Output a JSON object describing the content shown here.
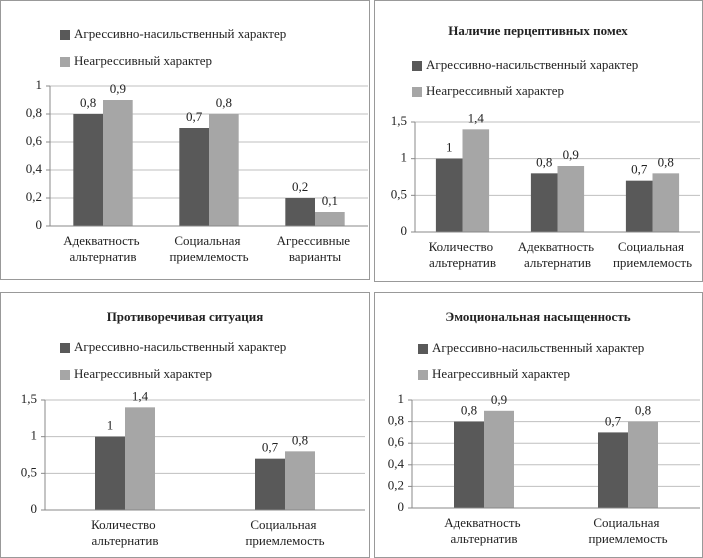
{
  "chart_data": [
    {
      "type": "bar",
      "categories": [
        "Адекватность альтернатив",
        "Социальная приемлемость",
        "Агрессивные варианты"
      ],
      "series": [
        {
          "name": "Агрессивно-насильственный характер",
          "color": "#595959",
          "values": [
            0.8,
            0.7,
            0.2
          ],
          "value_labels": [
            "0,8",
            "0,7",
            "0,2"
          ]
        },
        {
          "name": "Неагрессивный характер",
          "color": "#a6a6a6",
          "values": [
            0.9,
            0.8,
            0.1
          ],
          "value_labels": [
            "0,9",
            "0,8",
            "0,1"
          ]
        }
      ],
      "ylim": [
        0,
        1
      ],
      "yticks": [
        0,
        {
          "value": 0.2,
          "label": "0,2"
        },
        {
          "value": 0.4,
          "label": "0,4"
        },
        {
          "value": 0.6,
          "label": "0,6"
        },
        {
          "value": 0.8,
          "label": "0,8"
        },
        1
      ],
      "grid": true
    },
    {
      "type": "bar",
      "title": "Наличие перцептивных помех",
      "categories": [
        "Количество альтернатив",
        "Адекватность альтернатив",
        "Социальная приемлемость"
      ],
      "series": [
        {
          "name": "Агрессивно-насильственный характер",
          "color": "#595959",
          "values": [
            1,
            0.8,
            0.7
          ],
          "value_labels": [
            "1",
            "0,8",
            "0,7"
          ]
        },
        {
          "name": "Неагрессивный характер",
          "color": "#a6a6a6",
          "values": [
            1.4,
            0.9,
            0.8
          ],
          "value_labels": [
            "1,4",
            "0,9",
            "0,8"
          ]
        }
      ],
      "ylim": [
        0,
        1.5
      ],
      "yticks": [
        0,
        {
          "value": 0.5,
          "label": "0,5"
        },
        1,
        {
          "value": 1.5,
          "label": "1,5"
        }
      ],
      "grid": true
    },
    {
      "type": "bar",
      "title": "Противоречивая ситуация",
      "categories": [
        "Количество альтернатив",
        "Социальная приемлемость"
      ],
      "series": [
        {
          "name": "Агрессивно-насильственный характер",
          "color": "#595959",
          "values": [
            1,
            0.7
          ],
          "value_labels": [
            "1",
            "0,7"
          ]
        },
        {
          "name": "Неагрессивный характер",
          "color": "#a6a6a6",
          "values": [
            1.4,
            0.8
          ],
          "value_labels": [
            "1,4",
            "0,8"
          ]
        }
      ],
      "ylim": [
        0,
        1.5
      ],
      "yticks": [
        0,
        {
          "value": 0.5,
          "label": "0,5"
        },
        1,
        {
          "value": 1.5,
          "label": "1,5"
        }
      ],
      "grid": true
    },
    {
      "type": "bar",
      "title": "Эмоциональная насыщенность",
      "categories": [
        "Адекватность альтернатив",
        "Социальная приемлемость"
      ],
      "series": [
        {
          "name": "Агрессивно-насильственный характер",
          "color": "#595959",
          "values": [
            0.8,
            0.7
          ],
          "value_labels": [
            "0,8",
            "0,7"
          ]
        },
        {
          "name": "Неагрессивный характер",
          "color": "#a6a6a6",
          "values": [
            0.9,
            0.8
          ],
          "value_labels": [
            "0,9",
            "0,8"
          ]
        }
      ],
      "ylim": [
        0,
        1
      ],
      "yticks": [
        0,
        {
          "value": 0.2,
          "label": "0,2"
        },
        {
          "value": 0.4,
          "label": "0,4"
        },
        {
          "value": 0.6,
          "label": "0,6"
        },
        {
          "value": 0.8,
          "label": "0,8"
        },
        1
      ],
      "grid": true
    }
  ]
}
